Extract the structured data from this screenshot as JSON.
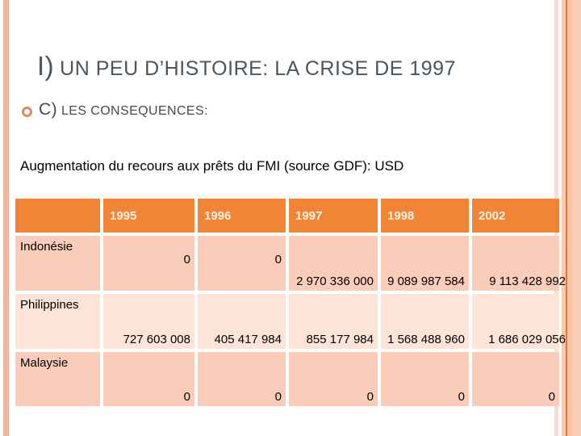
{
  "slide": {
    "title_prefix": "I)",
    "title_rest": "UN PEU D’HISTOIRE: LA CRISE DE 1997",
    "bullet_prefix": "C)",
    "bullet_rest": "LES CONSEQUENCES:",
    "paragraph": "Augmentation du recours aux prêts du FMI (source GDF): USD"
  },
  "table": {
    "columns": [
      "",
      "1995",
      "1996",
      "1997",
      "1998",
      "2002"
    ],
    "rows": [
      {
        "label": "Indonésie",
        "values": [
          "0",
          "0",
          "2 970 336 000",
          "9 089 987 584",
          "9 113 428 992"
        ]
      },
      {
        "label": "Philippines",
        "values": [
          "727 603 008",
          "405 417 984",
          "855 177 984",
          "1 568 488 960",
          "1 686 029 056"
        ]
      },
      {
        "label": "Malaysie",
        "values": [
          "0",
          "0",
          "0",
          "0",
          "0"
        ]
      }
    ]
  },
  "colors": {
    "header_bg": "#F28438",
    "row_dark": "#FACDBB",
    "row_light": "#FCE4D9",
    "left_bar": "#F4B49C",
    "title_text": "#4B555D",
    "bullet_ring": "#DF8A5C"
  }
}
